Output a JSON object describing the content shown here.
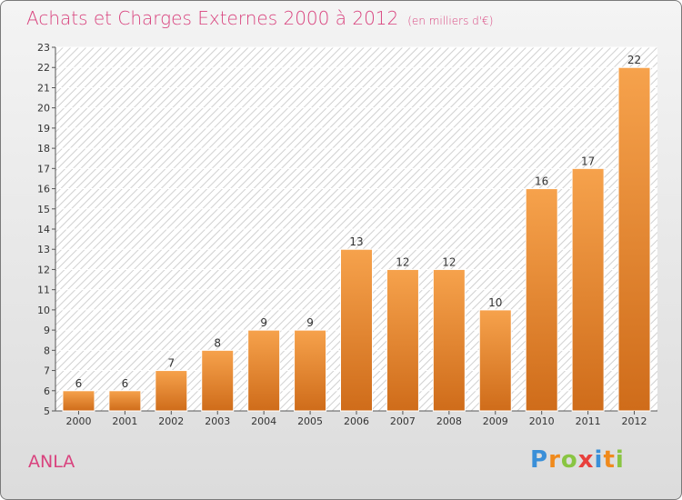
{
  "title": "Achats et Charges Externes 2000 à 2012",
  "subtitle": "(en milliers d'€)",
  "commune": "ANLA",
  "logo": "Proxiti",
  "colors": {
    "bar_light": "#f6a24c",
    "bar_dark": "#cf6c1a",
    "title": "#d9437e"
  },
  "chart_data": {
    "type": "bar",
    "title": "Achats et Charges Externes 2000 à 2012",
    "subtitle": "(en milliers d'€)",
    "categories": [
      "2000",
      "2001",
      "2002",
      "2003",
      "2004",
      "2005",
      "2006",
      "2007",
      "2008",
      "2009",
      "2010",
      "2011",
      "2012"
    ],
    "values": [
      6,
      6,
      7,
      8,
      9,
      9,
      13,
      12,
      12,
      10,
      16,
      17,
      22
    ],
    "ylim": [
      5,
      23
    ],
    "yticks": [
      5,
      6,
      7,
      8,
      9,
      10,
      11,
      12,
      13,
      14,
      15,
      16,
      17,
      18,
      19,
      20,
      21,
      22,
      23
    ],
    "grid": true,
    "data_labels": true
  }
}
